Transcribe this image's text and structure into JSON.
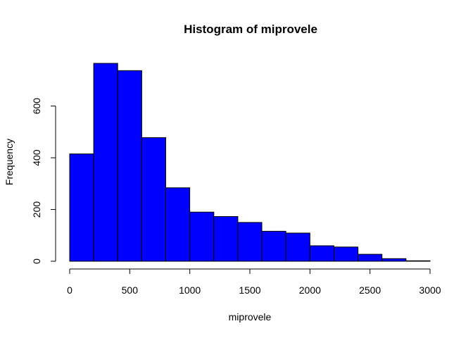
{
  "chart_data": {
    "type": "bar",
    "title": "Histogram of miprovele",
    "xlabel": "miprovele",
    "ylabel": "Frequency",
    "bar_color": "#0000ff",
    "bin_edges": [
      0,
      200,
      400,
      600,
      800,
      1000,
      1200,
      1400,
      1600,
      1800,
      2000,
      2200,
      2400,
      2600,
      2800,
      3000
    ],
    "values": [
      415,
      765,
      737,
      478,
      284,
      190,
      173,
      150,
      116,
      109,
      60,
      55,
      27,
      10,
      2
    ],
    "xlim": [
      0,
      3000
    ],
    "ylim": [
      0,
      765
    ],
    "x_ticks": [
      0,
      500,
      1000,
      1500,
      2000,
      2500,
      3000
    ],
    "y_ticks": [
      0,
      200,
      400,
      600
    ],
    "grid": false,
    "legend": "none"
  }
}
